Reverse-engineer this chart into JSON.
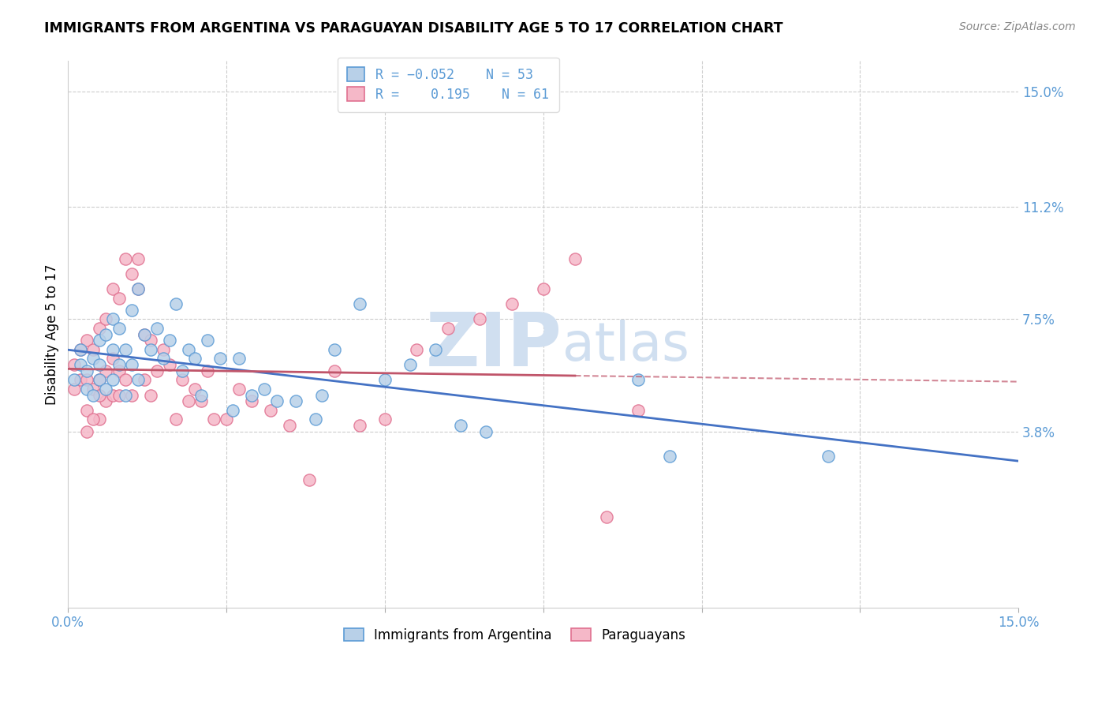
{
  "title": "IMMIGRANTS FROM ARGENTINA VS PARAGUAYAN DISABILITY AGE 5 TO 17 CORRELATION CHART",
  "source": "Source: ZipAtlas.com",
  "ylabel": "Disability Age 5 to 17",
  "xlim": [
    0.0,
    0.15
  ],
  "ylim": [
    -0.02,
    0.16
  ],
  "xticks": [
    0.0,
    0.025,
    0.05,
    0.075,
    0.1,
    0.125,
    0.15
  ],
  "xtick_labels": [
    "0.0%",
    "",
    "",
    "",
    "",
    "",
    "15.0%"
  ],
  "ytick_labels_right": [
    "3.8%",
    "7.5%",
    "11.2%",
    "15.0%"
  ],
  "ytick_vals_right": [
    0.038,
    0.075,
    0.112,
    0.15
  ],
  "blue_R": -0.052,
  "blue_N": 53,
  "pink_R": 0.195,
  "pink_N": 61,
  "blue_color": "#b8d0e8",
  "pink_color": "#f5b8c8",
  "blue_edge_color": "#5b9bd5",
  "pink_edge_color": "#e07090",
  "blue_line_color": "#4472c4",
  "pink_line_color": "#c0556a",
  "watermark_color": "#d0dff0",
  "legend_label_blue": "Immigrants from Argentina",
  "legend_label_pink": "Paraguayans",
  "blue_scatter_x": [
    0.001,
    0.002,
    0.002,
    0.003,
    0.003,
    0.004,
    0.004,
    0.005,
    0.005,
    0.005,
    0.006,
    0.006,
    0.007,
    0.007,
    0.007,
    0.008,
    0.008,
    0.009,
    0.009,
    0.01,
    0.01,
    0.011,
    0.011,
    0.012,
    0.013,
    0.014,
    0.015,
    0.016,
    0.017,
    0.018,
    0.019,
    0.02,
    0.021,
    0.022,
    0.024,
    0.026,
    0.027,
    0.029,
    0.031,
    0.033,
    0.036,
    0.039,
    0.042,
    0.046,
    0.05,
    0.054,
    0.058,
    0.062,
    0.066,
    0.09,
    0.095,
    0.12,
    0.04
  ],
  "blue_scatter_y": [
    0.055,
    0.06,
    0.065,
    0.052,
    0.058,
    0.05,
    0.062,
    0.055,
    0.06,
    0.068,
    0.052,
    0.07,
    0.055,
    0.065,
    0.075,
    0.06,
    0.072,
    0.05,
    0.065,
    0.06,
    0.078,
    0.055,
    0.085,
    0.07,
    0.065,
    0.072,
    0.062,
    0.068,
    0.08,
    0.058,
    0.065,
    0.062,
    0.05,
    0.068,
    0.062,
    0.045,
    0.062,
    0.05,
    0.052,
    0.048,
    0.048,
    0.042,
    0.065,
    0.08,
    0.055,
    0.06,
    0.065,
    0.04,
    0.038,
    0.055,
    0.03,
    0.03,
    0.05
  ],
  "pink_scatter_x": [
    0.001,
    0.001,
    0.002,
    0.002,
    0.003,
    0.003,
    0.003,
    0.004,
    0.004,
    0.005,
    0.005,
    0.005,
    0.006,
    0.006,
    0.006,
    0.007,
    0.007,
    0.007,
    0.008,
    0.008,
    0.008,
    0.009,
    0.009,
    0.01,
    0.01,
    0.011,
    0.011,
    0.012,
    0.012,
    0.013,
    0.013,
    0.014,
    0.015,
    0.016,
    0.017,
    0.018,
    0.019,
    0.02,
    0.021,
    0.022,
    0.023,
    0.025,
    0.027,
    0.029,
    0.032,
    0.035,
    0.038,
    0.042,
    0.046,
    0.05,
    0.055,
    0.06,
    0.065,
    0.07,
    0.075,
    0.08,
    0.085,
    0.09,
    0.003,
    0.004,
    0.005
  ],
  "pink_scatter_y": [
    0.052,
    0.06,
    0.055,
    0.065,
    0.045,
    0.055,
    0.068,
    0.052,
    0.065,
    0.042,
    0.055,
    0.072,
    0.048,
    0.058,
    0.075,
    0.05,
    0.062,
    0.085,
    0.05,
    0.058,
    0.082,
    0.055,
    0.095,
    0.05,
    0.09,
    0.085,
    0.095,
    0.055,
    0.07,
    0.05,
    0.068,
    0.058,
    0.065,
    0.06,
    0.042,
    0.055,
    0.048,
    0.052,
    0.048,
    0.058,
    0.042,
    0.042,
    0.052,
    0.048,
    0.045,
    0.04,
    0.022,
    0.058,
    0.04,
    0.042,
    0.065,
    0.072,
    0.075,
    0.08,
    0.085,
    0.095,
    0.01,
    0.045,
    0.038,
    0.042,
    0.05
  ]
}
